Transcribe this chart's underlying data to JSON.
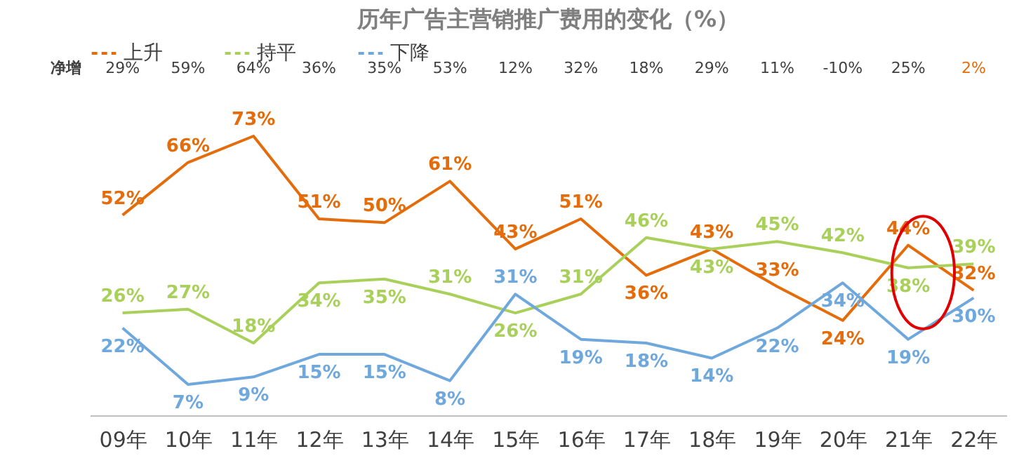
{
  "chart_data": {
    "type": "line",
    "title": "历年广告主营销推广费用的变化（%）",
    "categories": [
      "09年",
      "10年",
      "11年",
      "12年",
      "13年",
      "14年",
      "15年",
      "16年",
      "17年",
      "18年",
      "19年",
      "20年",
      "21年",
      "22年"
    ],
    "series": [
      {
        "name": "上升",
        "color": "#e46c0a",
        "values": [
          52,
          66,
          73,
          51,
          50,
          61,
          43,
          51,
          36,
          43,
          33,
          24,
          44,
          32
        ],
        "value_labels": [
          "52%",
          "66%",
          "73%",
          "51%",
          "50%",
          "61%",
          "43%",
          "51%",
          "36%",
          "43%",
          "33%",
          "24%",
          "44%",
          "32%"
        ]
      },
      {
        "name": "持平",
        "color": "#a9d05a",
        "values": [
          26,
          27,
          18,
          34,
          35,
          31,
          26,
          31,
          46,
          43,
          45,
          42,
          38,
          39
        ],
        "value_labels": [
          "26%",
          "27%",
          "18%",
          "34%",
          "35%",
          "31%",
          "26%",
          "31%",
          "46%",
          "43%",
          "45%",
          "42%",
          "38%",
          "39%"
        ]
      },
      {
        "name": "下降",
        "color": "#6fa8dc",
        "values": [
          22,
          7,
          9,
          15,
          15,
          8,
          31,
          19,
          18,
          14,
          22,
          34,
          19,
          30
        ],
        "value_labels": [
          "22%",
          "7%",
          "9%",
          "15%",
          "15%",
          "8%",
          "31%",
          "19%",
          "18%",
          "14%",
          "22%",
          "34%",
          "19%",
          "30%"
        ]
      }
    ],
    "legend": "top",
    "grid": false,
    "marker": "none",
    "line_style": "solid",
    "annotations": [
      "净增",
      "29%",
      "59%",
      "64%",
      "36%",
      "35%",
      "53%",
      "12%",
      "32%",
      "18%",
      "29%",
      "11%",
      "-10%",
      "25%",
      "2%"
    ]
  }
}
